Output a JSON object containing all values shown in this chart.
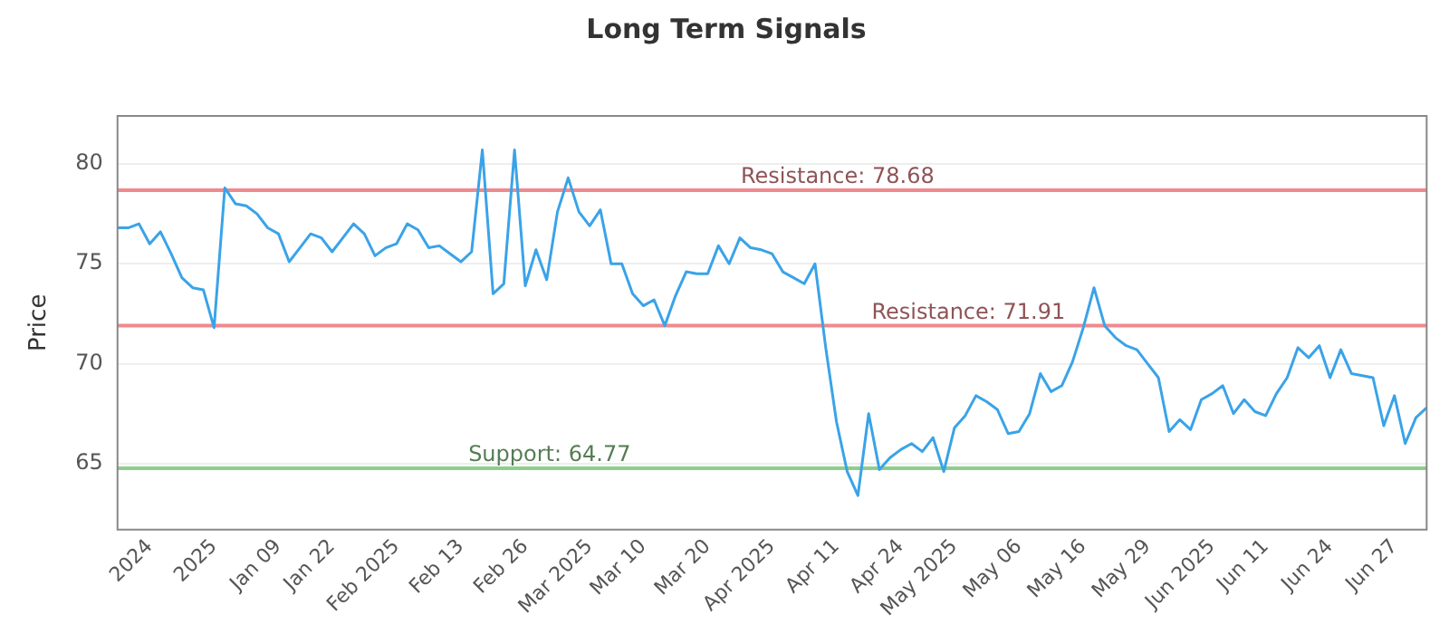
{
  "chart_data": {
    "type": "line",
    "title": "Long Term Signals",
    "ylabel": "Price",
    "categories": [
      null,
      null,
      null,
      "2024",
      null,
      null,
      null,
      null,
      null,
      "2025",
      null,
      null,
      null,
      null,
      null,
      "Jan 09",
      null,
      null,
      null,
      null,
      "Jan 22",
      null,
      null,
      null,
      null,
      null,
      "Feb 2025",
      null,
      null,
      null,
      null,
      null,
      "Feb 13",
      null,
      null,
      null,
      null,
      null,
      "Feb 26",
      null,
      null,
      null,
      null,
      null,
      "Mar 2025",
      null,
      null,
      null,
      null,
      "Mar 10",
      null,
      null,
      null,
      null,
      null,
      "Mar 20",
      null,
      null,
      null,
      null,
      null,
      "Apr 2025",
      null,
      null,
      null,
      null,
      null,
      "Apr 11",
      null,
      null,
      null,
      null,
      null,
      "Apr 24",
      null,
      null,
      null,
      null,
      "May 2025",
      null,
      null,
      null,
      null,
      null,
      "May 06",
      null,
      null,
      null,
      null,
      null,
      "May 16",
      null,
      null,
      null,
      null,
      null,
      "May 29",
      null,
      null,
      null,
      null,
      null,
      "Jun 2025",
      null,
      null,
      null,
      null,
      "Jun 11",
      null,
      null,
      null,
      null,
      null,
      "Jun 24",
      null,
      null,
      null,
      null,
      null,
      "Jun 27",
      null,
      null,
      null
    ],
    "series": [
      {
        "color": "#3aa3e8",
        "values": [
          76.8,
          76.8,
          77.0,
          76.0,
          76.6,
          75.5,
          74.3,
          73.8,
          73.7,
          71.8,
          78.8,
          78.0,
          77.9,
          77.5,
          76.8,
          76.5,
          75.1,
          75.8,
          76.5,
          76.3,
          75.6,
          76.3,
          77.0,
          76.5,
          75.4,
          75.8,
          76.0,
          77.0,
          76.7,
          75.8,
          75.9,
          75.5,
          75.1,
          75.6,
          80.7,
          73.5,
          74.0,
          80.7,
          73.9,
          75.7,
          74.2,
          77.6,
          79.3,
          77.6,
          76.9,
          77.7,
          75.0,
          75.0,
          73.5,
          72.9,
          73.2,
          71.9,
          73.4,
          74.6,
          74.5,
          74.5,
          75.9,
          75.0,
          76.3,
          75.8,
          75.7,
          75.5,
          74.6,
          74.3,
          74.0,
          75.0,
          70.8,
          67.1,
          64.6,
          63.4,
          67.5,
          64.7,
          65.3,
          65.7,
          66.0,
          65.6,
          66.3,
          64.6,
          66.8,
          67.4,
          68.4,
          68.1,
          67.7,
          66.5,
          66.6,
          67.5,
          69.5,
          68.6,
          68.9,
          70.1,
          71.8,
          73.8,
          71.9,
          71.3,
          70.9,
          70.7,
          70.0,
          69.3,
          66.6,
          67.2,
          66.7,
          68.2,
          68.5,
          68.9,
          67.5,
          68.2,
          67.6,
          67.4,
          68.5,
          69.3,
          70.8,
          70.3,
          70.9,
          69.3,
          70.7,
          69.5,
          69.4,
          69.3,
          66.9,
          68.4,
          66.0,
          67.3,
          67.8
        ]
      }
    ],
    "ylim": [
      61.7,
      82.4
    ],
    "yticks": [
      65,
      70,
      75,
      80
    ],
    "grid": "y",
    "marker": "none",
    "line_style": "solid",
    "ref_lines": [
      {
        "axis": "y",
        "value": 78.68,
        "label": "Resistance: 78.68",
        "color": "#ef8a8f"
      },
      {
        "axis": "y",
        "value": 71.91,
        "label": "Resistance: 71.91",
        "color": "#ef8a8f"
      },
      {
        "axis": "y",
        "value": 64.77,
        "label": "Support: 64.77",
        "color": "#8cce8c"
      }
    ]
  }
}
